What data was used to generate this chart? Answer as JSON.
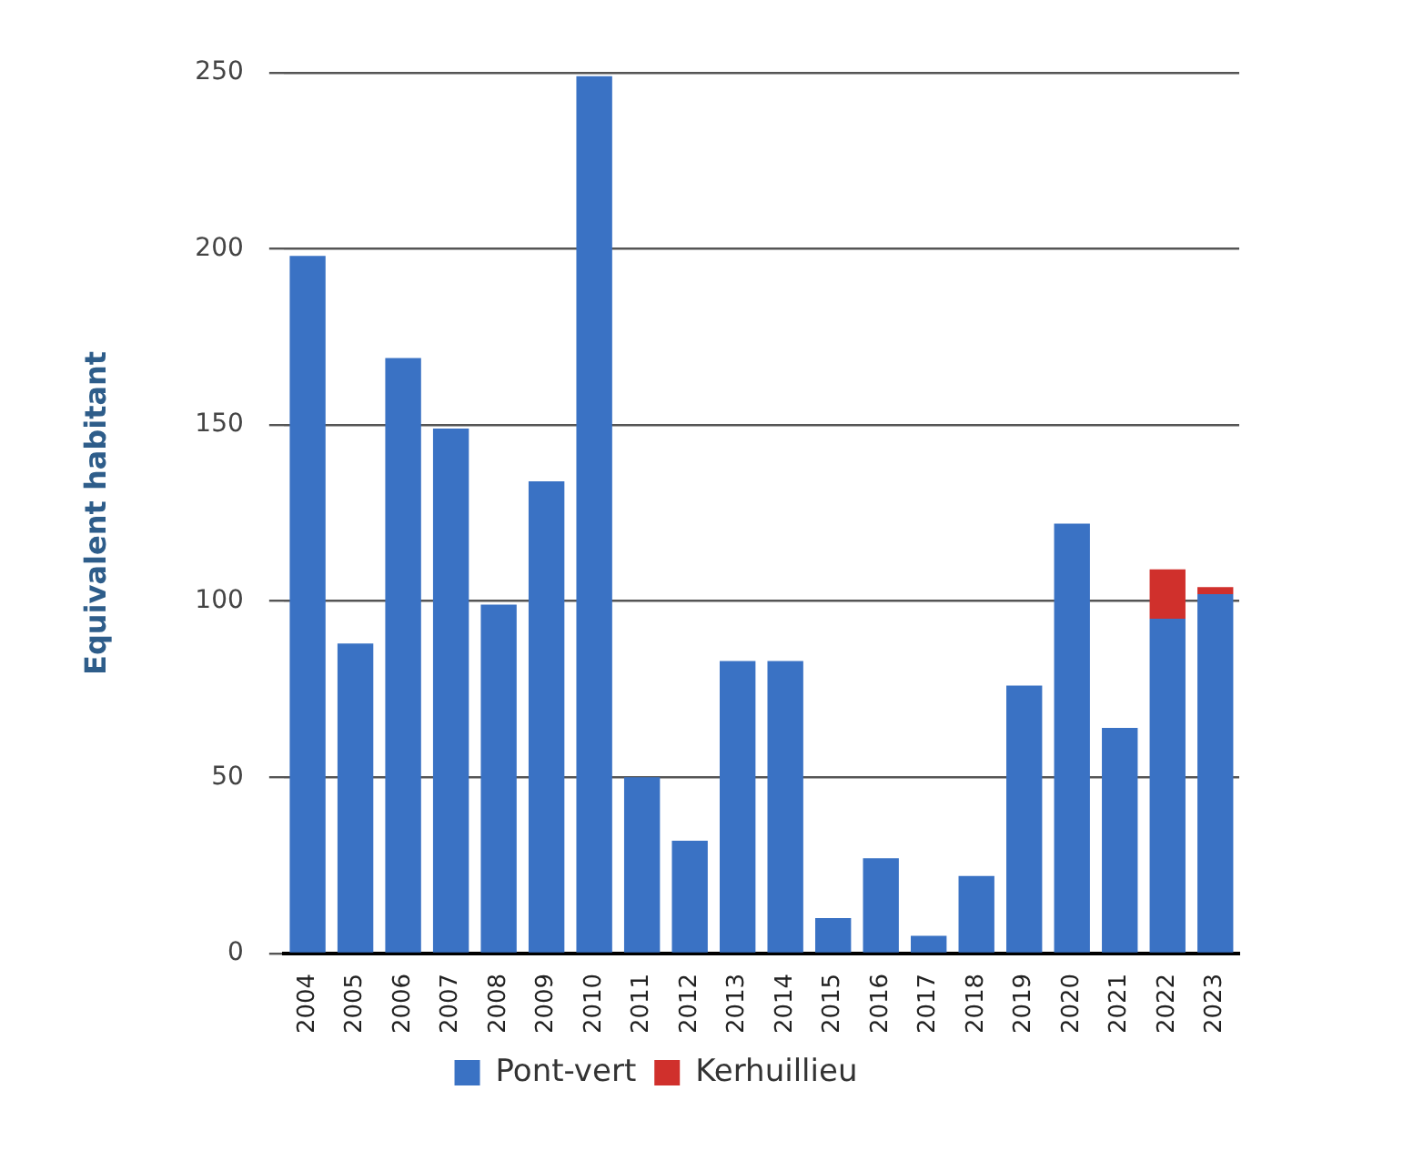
{
  "chart_data": {
    "type": "bar",
    "stacked": true,
    "ylabel": "Equivalent habitant",
    "categories": [
      "2004",
      "2005",
      "2006",
      "2007",
      "2008",
      "2009",
      "2010",
      "2011",
      "2012",
      "2013",
      "2014",
      "2015",
      "2016",
      "2017",
      "2018",
      "2019",
      "2020",
      "2021",
      "2022",
      "2023"
    ],
    "series": [
      {
        "name": "Pont-vert",
        "color": "#3a72c4",
        "values": [
          198,
          88,
          169,
          149,
          99,
          134,
          249,
          50,
          32,
          83,
          83,
          10,
          27,
          5,
          22,
          76,
          122,
          64,
          95,
          102
        ]
      },
      {
        "name": "Kerhuillieu",
        "color": "#d0302c",
        "values": [
          0,
          0,
          0,
          0,
          0,
          0,
          0,
          0,
          0,
          0,
          0,
          0,
          0,
          0,
          0,
          0,
          0,
          0,
          14,
          2
        ]
      }
    ],
    "ylim": [
      0,
      250
    ],
    "yticks": [
      0,
      50,
      100,
      150,
      200,
      250
    ],
    "grid": "y",
    "legend": "bottom"
  }
}
